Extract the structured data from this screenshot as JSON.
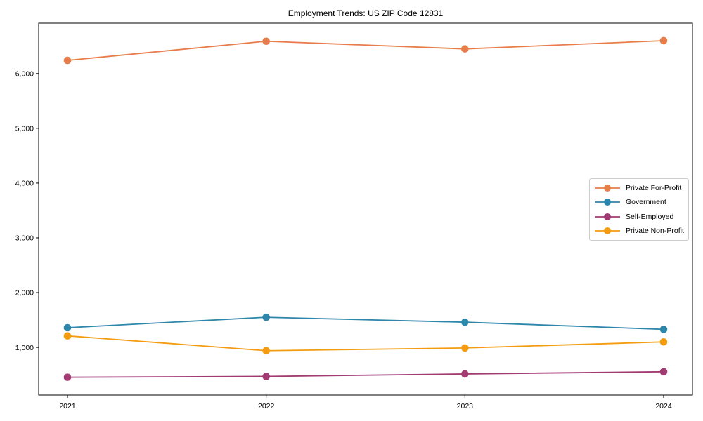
{
  "chart_data": {
    "type": "line",
    "title": "Employment Trends: US ZIP Code 12831",
    "xlabel": "",
    "ylabel": "",
    "categories": [
      "2021",
      "2022",
      "2023",
      "2024"
    ],
    "series": [
      {
        "name": "Private For-Profit",
        "color": "#E87D4B",
        "values": [
          6240,
          6590,
          6450,
          6600
        ]
      },
      {
        "name": "Government",
        "color": "#2E86AB",
        "values": [
          1360,
          1550,
          1460,
          1330
        ]
      },
      {
        "name": "Self-Employed",
        "color": "#A23B72",
        "values": [
          455,
          470,
          515,
          555
        ]
      },
      {
        "name": "Private Non-Profit",
        "color": "#F39C11",
        "values": [
          1210,
          940,
          990,
          1100
        ]
      }
    ],
    "ylim": [
      130,
      6920
    ],
    "y_ticks": {
      "values": [
        1000,
        2000,
        3000,
        4000,
        5000,
        6000
      ],
      "labels": [
        "1,000",
        "2,000",
        "3,000",
        "4,000",
        "5,000",
        "6,000"
      ]
    },
    "grid": false,
    "legend_position": "center right",
    "axis_color": "#000000",
    "background_color": "#ffffff"
  }
}
